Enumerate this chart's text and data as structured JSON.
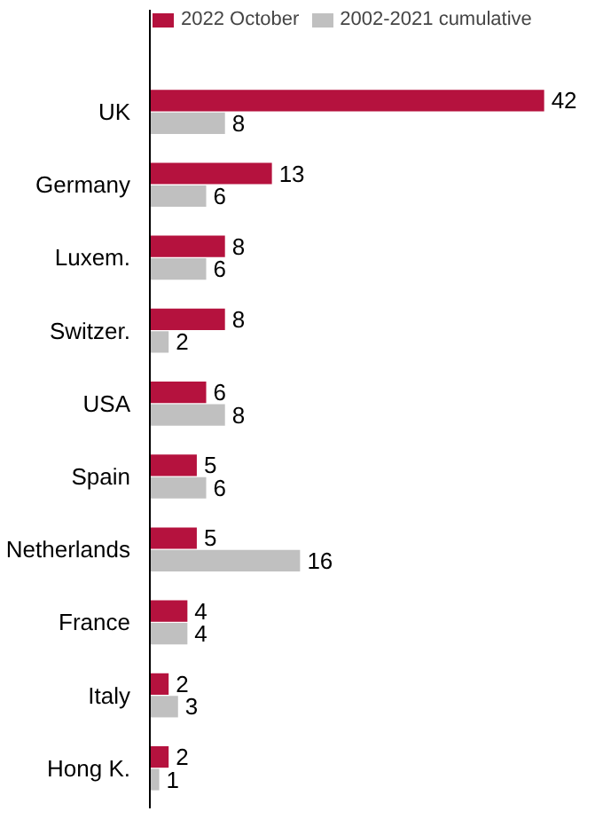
{
  "chart_data": {
    "type": "bar",
    "orientation": "horizontal",
    "data_labels": true,
    "legend": "top",
    "grid": false,
    "categories": [
      "UK",
      "Germany",
      "Luxem.",
      "Switzer.",
      "USA",
      "Spain",
      "Netherlands",
      "France",
      "Italy",
      "Hong K."
    ],
    "series": [
      {
        "name": "2022 October",
        "color": "#b5123e",
        "values": [
          42,
          13,
          8,
          8,
          6,
          5,
          5,
          4,
          2,
          2
        ]
      },
      {
        "name": "2002-2021 cumulative",
        "color": "#c0c0c0",
        "values": [
          8,
          6,
          6,
          2,
          8,
          6,
          16,
          4,
          3,
          1
        ]
      }
    ]
  }
}
